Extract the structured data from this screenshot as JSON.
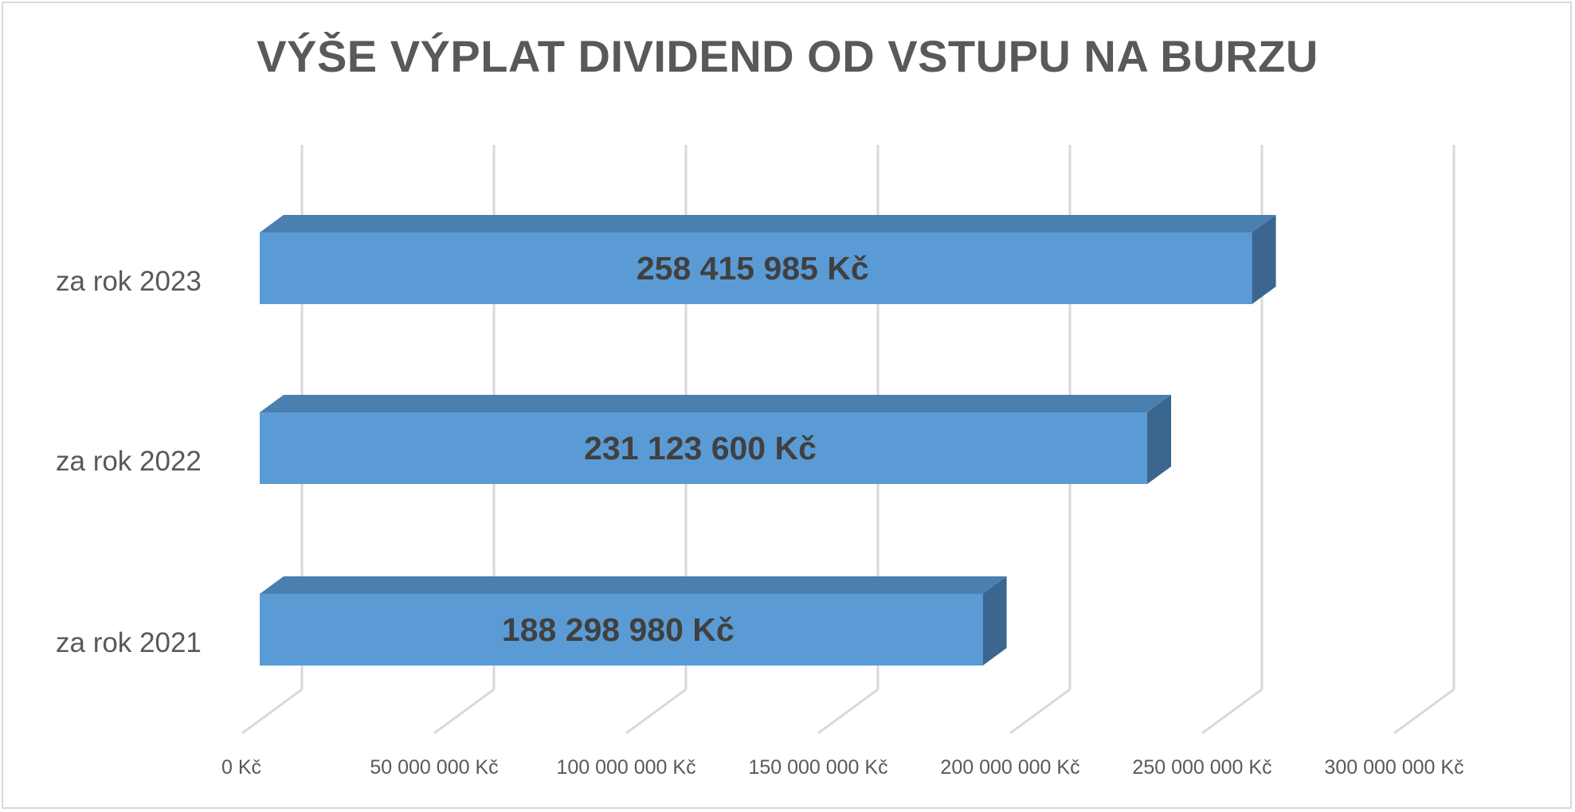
{
  "chart_data": {
    "type": "bar",
    "orientation": "horizontal",
    "style": "3d",
    "title": "VÝŠE VÝPLAT DIVIDEND OD VSTUPU NA BURZU",
    "categories": [
      "za rok 2021",
      "za rok 2022",
      "za rok 2023"
    ],
    "values": [
      188298980,
      231123600,
      258415985
    ],
    "data_labels": [
      "188 298 980 Kč",
      "231 123 600 Kč",
      "258 415 985 Kč"
    ],
    "xlim": [
      0,
      300000000
    ],
    "xticks": [
      0,
      50000000,
      100000000,
      150000000,
      200000000,
      250000000,
      300000000
    ],
    "xtick_labels": [
      "0 Kč",
      "50 000 000 Kč",
      "100 000 000 Kč",
      "150 000 000 Kč",
      "200 000 000 Kč",
      "250 000 000 Kč",
      "300 000 000 Kč"
    ],
    "xlabel": "",
    "ylabel": "",
    "grid": true,
    "legend": "none",
    "colors": {
      "bar_front": "#5b9bd5",
      "bar_top": "#4a7fb0",
      "bar_side": "#3a6690",
      "grid": "#d9d9d9",
      "text": "#595959"
    }
  }
}
